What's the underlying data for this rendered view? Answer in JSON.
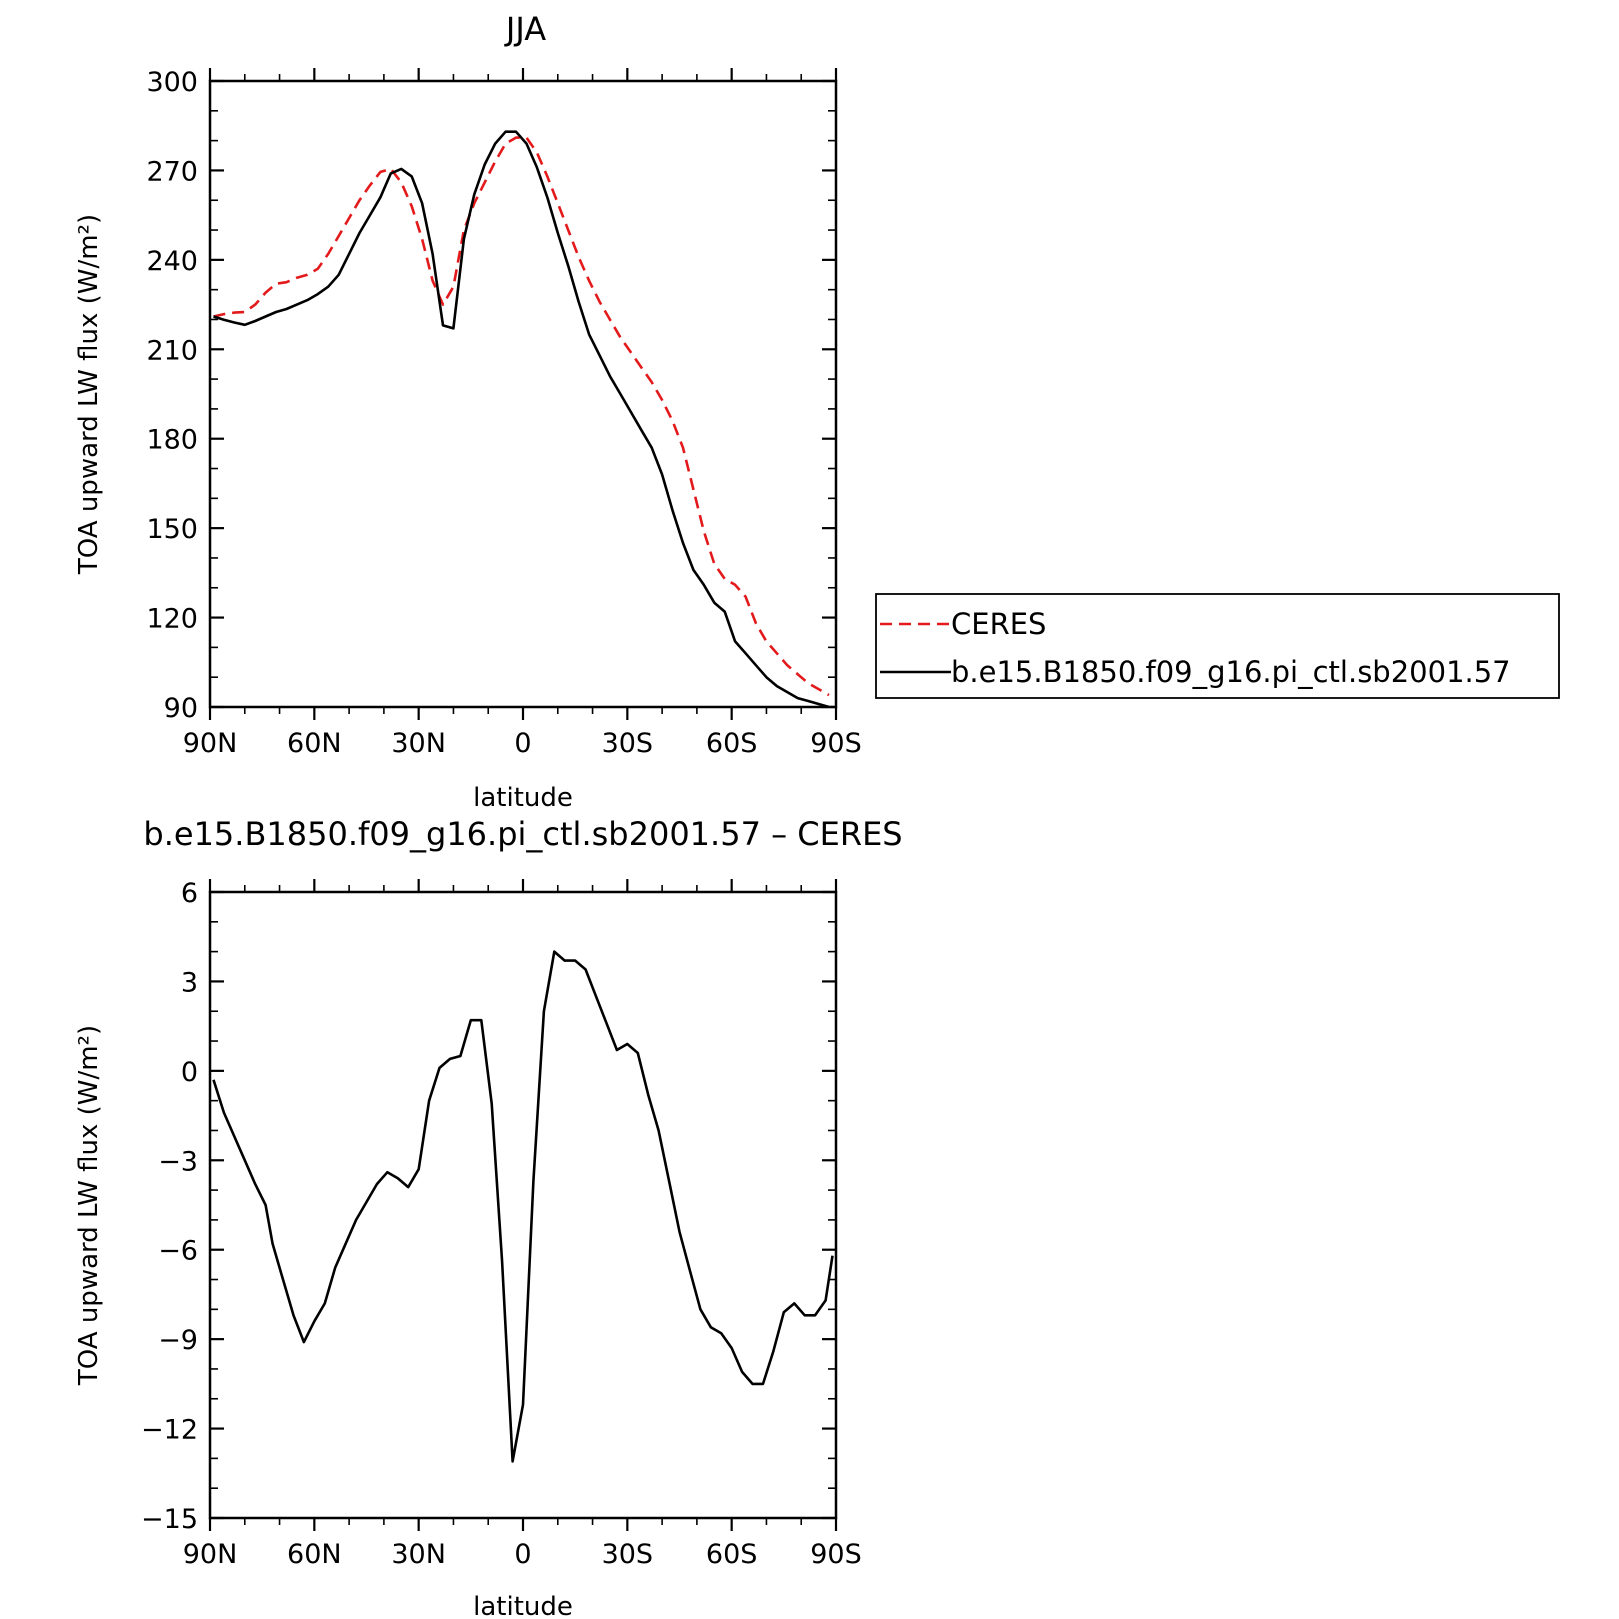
{
  "chart_data": [
    {
      "type": "line",
      "title": "JJA",
      "xlabel": "latitude",
      "ylabel": "TOA upward LW flux (W/m²)",
      "ylim": [
        90,
        300
      ],
      "yticks": [
        "300",
        "270",
        "240",
        "210",
        "180",
        "150",
        "120",
        "90"
      ],
      "xlim": [
        90,
        -90
      ],
      "xticks": [
        "90N",
        "60N",
        "30N",
        "0",
        "30S",
        "60S",
        "90S"
      ],
      "x": [
        89,
        86,
        83,
        80,
        77,
        74,
        71,
        68,
        65,
        62,
        59,
        56,
        53,
        50,
        47,
        44,
        41,
        38,
        35,
        32,
        29,
        26,
        23,
        20,
        17,
        14,
        11,
        8,
        5,
        2,
        -1,
        -4,
        -7,
        -10,
        -13,
        -16,
        -19,
        -22,
        -25,
        -28,
        -31,
        -34,
        -37,
        -40,
        -43,
        -46,
        -49,
        -52,
        -55,
        -58,
        -61,
        -64,
        -67,
        -70,
        -73,
        -76,
        -79,
        -82,
        -85,
        -88
      ],
      "legend": "right",
      "series": [
        {
          "name": "CERES",
          "color": "#e31a1c",
          "dash": "dashed",
          "values": [
            221.0,
            221.8,
            222.3,
            222.5,
            225,
            229,
            232,
            232.5,
            234,
            235,
            237,
            242,
            248,
            254,
            260,
            265,
            269.5,
            270.5,
            266,
            258,
            247,
            233,
            225,
            231,
            250,
            259,
            266,
            273,
            279,
            281,
            281,
            276,
            268,
            259,
            250,
            241,
            233,
            226,
            220,
            214,
            209,
            204,
            199,
            193,
            186,
            177,
            163,
            149,
            138,
            133,
            131,
            127,
            118,
            112,
            108,
            104,
            101,
            98,
            96,
            94
          ]
        },
        {
          "name": "b.e15.B1850.f09_g16.pi_ctl.sb2001.57",
          "color": "#000000",
          "dash": "solid",
          "values": [
            221.0,
            219.9,
            219,
            218.2,
            219.5,
            221,
            222.5,
            223.5,
            225,
            226.5,
            228.5,
            231,
            235,
            242,
            249,
            255,
            261,
            269,
            270.5,
            268,
            259,
            242,
            218,
            217,
            247,
            262,
            272,
            279,
            283,
            283,
            279,
            271,
            261,
            249,
            238,
            226,
            215,
            208,
            201,
            195,
            189,
            183,
            177,
            168,
            156,
            145,
            136,
            131,
            125,
            122,
            112,
            108,
            104,
            100,
            97,
            95,
            93,
            92,
            91,
            90
          ]
        }
      ]
    },
    {
      "type": "line",
      "title": "b.e15.B1850.f09_g16.pi_ctl.sb2001.57 – CERES",
      "xlabel": "latitude",
      "ylabel": "TOA upward LW flux (W/m²)",
      "ylim": [
        -15,
        6
      ],
      "yticks": [
        "6",
        "3",
        "0",
        "−3",
        "−6",
        "−9",
        "−12",
        "−15"
      ],
      "xlim": [
        90,
        -90
      ],
      "xticks": [
        "90N",
        "60N",
        "30N",
        "0",
        "30S",
        "60S",
        "90S"
      ],
      "x": [
        89,
        86,
        83,
        80,
        77,
        74,
        72,
        69,
        66,
        63,
        60,
        57,
        54,
        51,
        48,
        45,
        42,
        39,
        36,
        33,
        30,
        27,
        24,
        21,
        18,
        15,
        12,
        9,
        6,
        3,
        0,
        -3,
        -6,
        -9,
        -12,
        -15,
        -18,
        -21,
        -24,
        -27,
        -30,
        -33,
        -36,
        -39,
        -42,
        -45,
        -48,
        -51,
        -54,
        -57,
        -60,
        -63,
        -66,
        -69,
        -72,
        -75,
        -78,
        -81,
        -84,
        -87,
        -89
      ],
      "series": [
        {
          "name": "",
          "color": "#000000",
          "dash": "solid",
          "values": [
            -0.3,
            -1.4,
            -2.2,
            -3.0,
            -3.8,
            -4.5,
            -5.8,
            -7.0,
            -8.2,
            -9.1,
            -8.4,
            -7.8,
            -6.6,
            -5.8,
            -5.0,
            -4.4,
            -3.8,
            -3.4,
            -3.6,
            -3.9,
            -3.3,
            -1.0,
            0.1,
            0.4,
            0.5,
            1.7,
            1.7,
            -1.1,
            -6.4,
            -13.1,
            -11.2,
            -3.7,
            2.0,
            4.0,
            3.7,
            3.7,
            3.4,
            2.5,
            1.6,
            0.7,
            0.9,
            0.6,
            -0.8,
            -2.0,
            -3.7,
            -5.4,
            -6.7,
            -8.0,
            -8.6,
            -8.8,
            -9.3,
            -10.1,
            -10.5,
            -10.5,
            -9.4,
            -8.1,
            -7.8,
            -8.2,
            -8.2,
            -7.7,
            -6.2
          ]
        }
      ]
    }
  ]
}
